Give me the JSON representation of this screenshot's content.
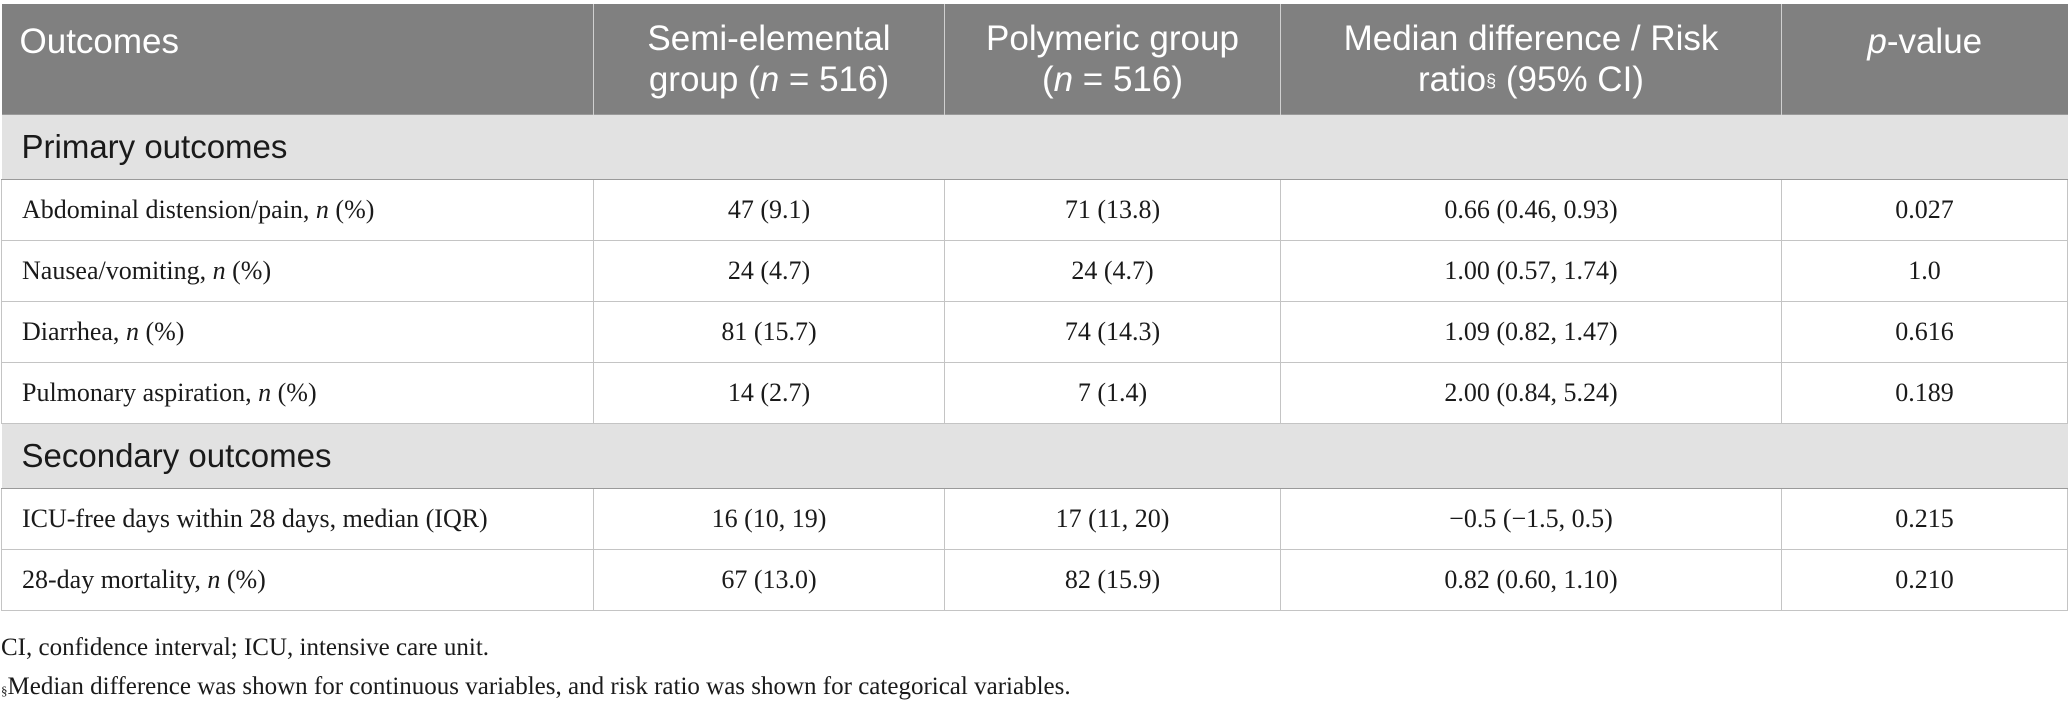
{
  "header": {
    "col1": "Outcomes",
    "col2_line1": "Semi-elemental",
    "col2_line2_pre": "group (",
    "col2_n": "n",
    "col2_line2_post": " = 516)",
    "col3_line1": "Polymeric group",
    "col3_pre": "(",
    "col3_n": "n",
    "col3_post": " = 516)",
    "col4_line1": "Median difference / Risk",
    "col4_line2_pre": "ratio",
    "col4_sup": "§",
    "col4_line2_post": " (95% CI)",
    "col5_p": "p",
    "col5_rest": "-value"
  },
  "sections": [
    {
      "title": "Primary outcomes",
      "rows": [
        {
          "label": "Abdominal distension/pain, ",
          "stat_n": "n",
          "stat_rest": " (%)",
          "semi": "47 (9.1)",
          "poly": "71 (13.8)",
          "diff": "0.66 (0.46, 0.93)",
          "p": "0.027"
        },
        {
          "label": "Nausea/vomiting, ",
          "stat_n": "n",
          "stat_rest": " (%)",
          "semi": "24 (4.7)",
          "poly": "24 (4.7)",
          "diff": "1.00 (0.57, 1.74)",
          "p": "1.0"
        },
        {
          "label": "Diarrhea, ",
          "stat_n": "n",
          "stat_rest": " (%)",
          "semi": "81 (15.7)",
          "poly": "74 (14.3)",
          "diff": "1.09 (0.82, 1.47)",
          "p": "0.616"
        },
        {
          "label": "Pulmonary aspiration, ",
          "stat_n": "n",
          "stat_rest": " (%)",
          "semi": "14 (2.7)",
          "poly": "7 (1.4)",
          "diff": "2.00 (0.84, 5.24)",
          "p": "0.189"
        }
      ]
    },
    {
      "title": "Secondary outcomes",
      "rows": [
        {
          "label": "ICU-free days within 28 days, median (IQR)",
          "stat_n": "",
          "stat_rest": "",
          "semi": "16 (10, 19)",
          "poly": "17 (11, 20)",
          "diff": "−0.5 (−1.5, 0.5)",
          "p": "0.215"
        },
        {
          "label": "28-day mortality, ",
          "stat_n": "n",
          "stat_rest": " (%)",
          "semi": "67 (13.0)",
          "poly": "82 (15.9)",
          "diff": "0.82 (0.60, 1.10)",
          "p": "0.210"
        }
      ]
    }
  ],
  "footnotes": {
    "abbrev": "CI, confidence interval; ICU, intensive care unit.",
    "sym": "§",
    "note": "Median difference was shown for continuous variables, and risk ratio was shown for categorical variables."
  }
}
